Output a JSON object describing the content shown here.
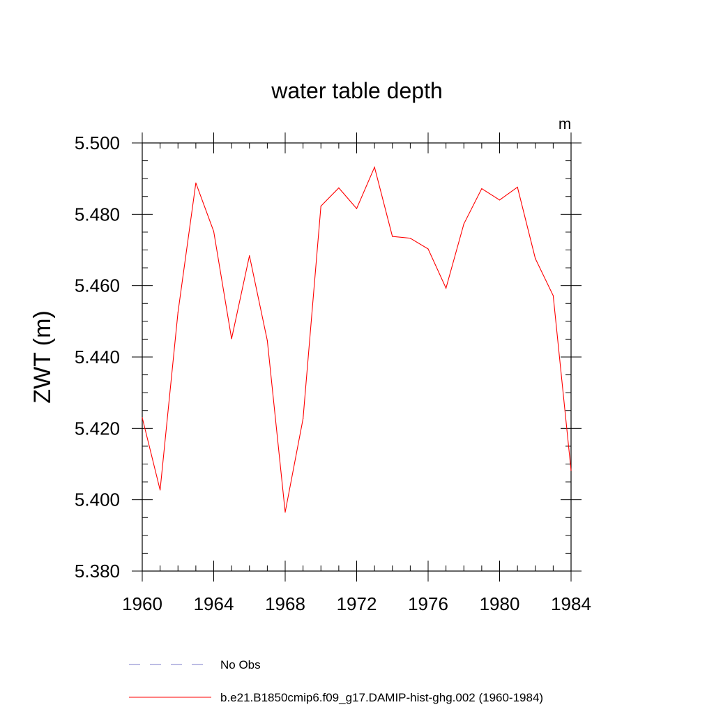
{
  "chart_data": {
    "type": "line",
    "title": "water table depth",
    "units": "m",
    "ylabel": "ZWT  (m)",
    "xlabel": "",
    "xlim": [
      1960,
      1984
    ],
    "ylim": [
      5.38,
      5.5
    ],
    "x_ticks": [
      1960,
      1964,
      1968,
      1972,
      1976,
      1980,
      1984
    ],
    "x_tick_labels": [
      "1960",
      "1964",
      "1968",
      "1972",
      "1976",
      "1980",
      "1984"
    ],
    "y_ticks": [
      5.38,
      5.4,
      5.42,
      5.44,
      5.46,
      5.48,
      5.5
    ],
    "y_tick_labels": [
      "5.380",
      "5.400",
      "5.420",
      "5.440",
      "5.460",
      "5.480",
      "5.500"
    ],
    "grid": false,
    "legend_position": "bottom",
    "series": [
      {
        "name": "No Obs",
        "color": "#7b7bc8",
        "dash": "dashed",
        "x": [],
        "y": []
      },
      {
        "name": "b.e21.B1850cmip6.f09_g17.DAMIP-hist-ghg.002 (1960-1984)",
        "color": "#ff0000",
        "dash": "solid",
        "x": [
          1960,
          1961,
          1962,
          1963,
          1964,
          1965,
          1966,
          1967,
          1968,
          1969,
          1970,
          1971,
          1972,
          1973,
          1974,
          1975,
          1976,
          1977,
          1978,
          1979,
          1980,
          1981,
          1982,
          1983,
          1984
        ],
        "y": [
          5.423,
          5.4027,
          5.4525,
          5.4888,
          5.4752,
          5.4451,
          5.4684,
          5.4446,
          5.3965,
          5.4227,
          5.4823,
          5.4874,
          5.4816,
          5.4932,
          5.4738,
          5.4733,
          5.4703,
          5.4593,
          5.4773,
          5.4872,
          5.484,
          5.4876,
          5.4676,
          5.4572,
          5.4082
        ]
      }
    ]
  }
}
